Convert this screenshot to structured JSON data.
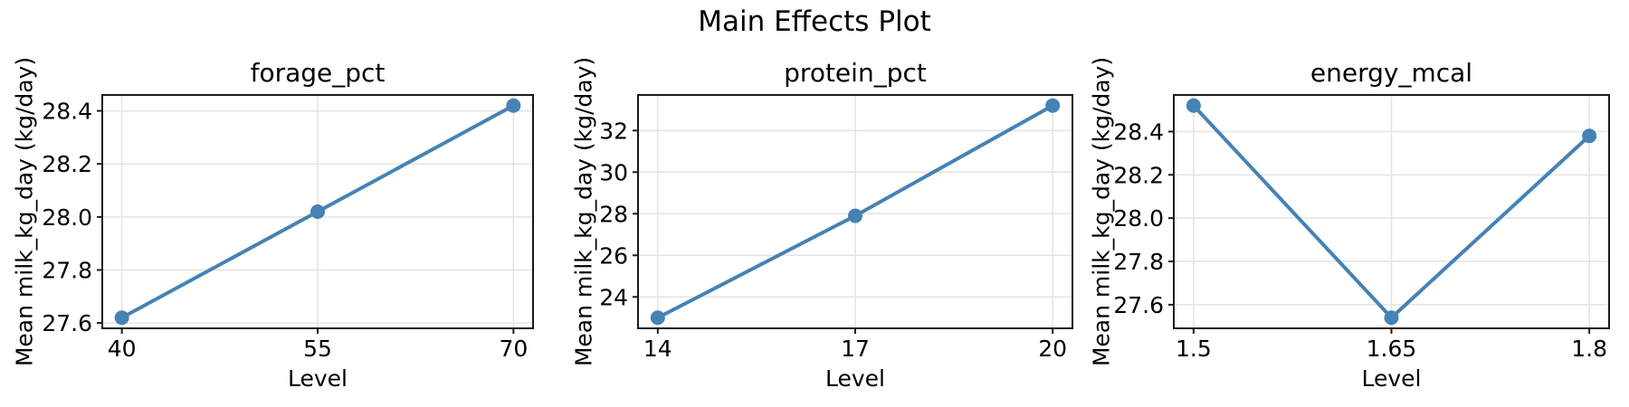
{
  "title": "Main Effects Plot",
  "colors": {
    "line": "#4682b4",
    "marker": "#4682b4",
    "grid": "#e4e4e4",
    "spine": "#1a1a1a",
    "text": "#000000",
    "background": "#ffffff"
  },
  "chart_data": [
    {
      "type": "line",
      "title": "forage_pct",
      "xlabel": "Level",
      "ylabel": "Mean milk_kg_day (kg/day)",
      "x": [
        40,
        55,
        70
      ],
      "y": [
        27.62,
        28.02,
        28.42
      ],
      "xtick_labels": [
        "40",
        "55",
        "70"
      ],
      "ytick_labels": [
        "27.6",
        "27.8",
        "28.0",
        "28.2",
        "28.4"
      ],
      "grid": true,
      "legend": false
    },
    {
      "type": "line",
      "title": "protein_pct",
      "xlabel": "Level",
      "ylabel": "Mean milk_kg_day (kg/day)",
      "x": [
        14,
        17,
        20
      ],
      "y": [
        23.0,
        27.9,
        33.2
      ],
      "xtick_labels": [
        "14",
        "17",
        "20"
      ],
      "ytick_labels": [
        "24",
        "26",
        "28",
        "30",
        "32"
      ],
      "grid": true,
      "legend": false
    },
    {
      "type": "line",
      "title": "energy_mcal",
      "xlabel": "Level",
      "ylabel": "Mean milk_kg_day (kg/day)",
      "x": [
        1.5,
        1.65,
        1.8
      ],
      "y": [
        28.52,
        27.54,
        28.38
      ],
      "xtick_labels": [
        "1.5",
        "1.65",
        "1.8"
      ],
      "ytick_labels": [
        "27.6",
        "27.8",
        "28.0",
        "28.2",
        "28.4"
      ],
      "grid": true,
      "legend": false
    }
  ]
}
